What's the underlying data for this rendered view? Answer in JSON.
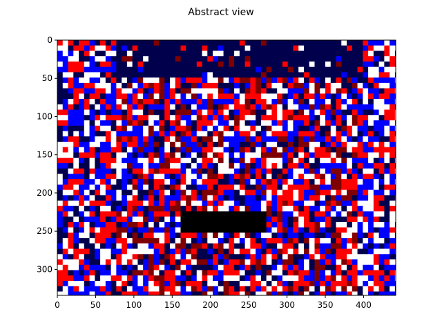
{
  "chart_data": {
    "type": "heatmap",
    "title": "Abstract view",
    "xlabel": "",
    "ylabel": "",
    "colormap": "seismic",
    "colormap_colors": [
      "#00004c",
      "#0000ff",
      "#ffffff",
      "#ff0000",
      "#7f0000"
    ],
    "xlim": [
      0,
      442
    ],
    "ylim": [
      334,
      0
    ],
    "y_axis_inverted": true,
    "x_ticks": [
      0,
      50,
      100,
      150,
      200,
      250,
      300,
      350,
      400
    ],
    "x_tick_labels": [
      "0",
      "50",
      "100",
      "150",
      "200",
      "250",
      "300",
      "350",
      "400"
    ],
    "y_ticks": [
      0,
      50,
      100,
      150,
      200,
      250,
      300
    ],
    "y_tick_labels": [
      "0",
      "50",
      "100",
      "150",
      "200",
      "250",
      "300"
    ],
    "grid": false,
    "legend": "none",
    "image_description_regions": [
      {
        "label": "dark-top-band",
        "x": [
          80,
          400
        ],
        "y": [
          0,
          50
        ],
        "value": "dark-blue"
      },
      {
        "label": "dark-rectangle",
        "x": [
          163,
          275
        ],
        "y": [
          225,
          250
        ],
        "value": "black"
      }
    ]
  }
}
